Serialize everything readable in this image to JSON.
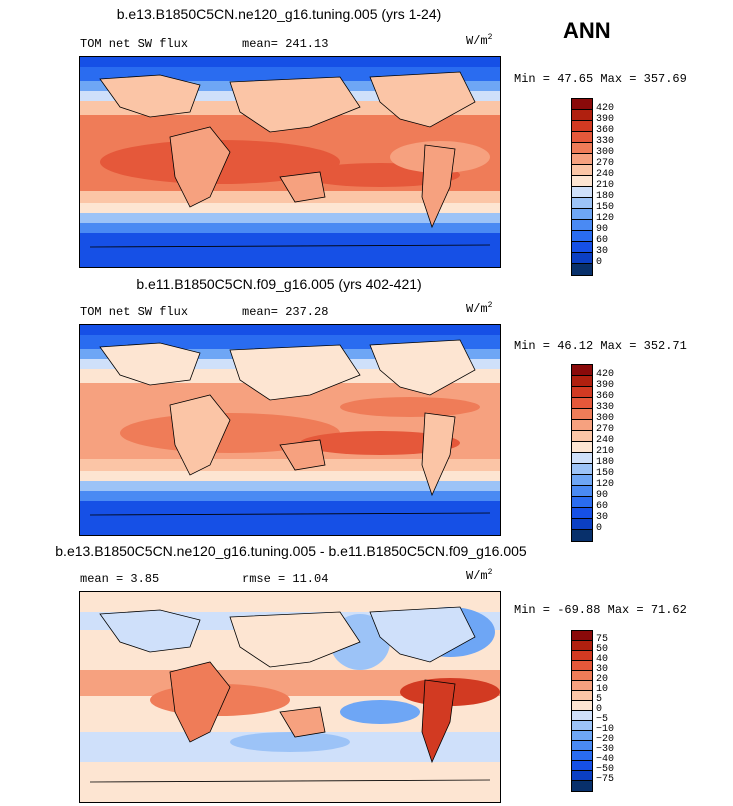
{
  "season": "ANN",
  "colors": [
    "#08306b",
    "#0b3fc4",
    "#1650e6",
    "#2a6cf0",
    "#4a8af3",
    "#6ea6f5",
    "#9cc3f7",
    "#cfe0fa",
    "#fde5d2",
    "#fbc5a6",
    "#f6a17f",
    "#ef7c58",
    "#e5583a",
    "#d23a22",
    "#b0200f",
    "#8a0a0a"
  ],
  "panels": [
    {
      "title": "b.e13.B1850C5CN.ne120_g16.tuning.005 (yrs 1-24)",
      "variable": "TOM net SW flux",
      "stat_text": "mean= 241.13",
      "unit_base": "W/m",
      "unit_sup": "2",
      "minmax": "Min =  47.65 Max = 357.69",
      "levels": [
        "420",
        "390",
        "360",
        "330",
        "300",
        "270",
        "240",
        "210",
        "180",
        "150",
        "120",
        "90",
        "60",
        "30",
        "0"
      ],
      "chart_data": {
        "type": "heatmap",
        "title": "b.e13.B1850C5CN.ne120_g16.tuning.005 (yrs 1-24)",
        "subtitle": "TOM net SW flux",
        "units": "W/m^2",
        "mean": 241.13,
        "min": 47.65,
        "max": 357.69,
        "contour_levels": [
          0,
          30,
          60,
          90,
          120,
          150,
          180,
          210,
          240,
          270,
          300,
          330,
          360,
          390,
          420
        ]
      }
    },
    {
      "title": "b.e11.B1850C5CN.f09_g16.005 (yrs 402-421)",
      "variable": "TOM net SW flux",
      "stat_text": "mean= 237.28",
      "unit_base": "W/m",
      "unit_sup": "2",
      "minmax": "Min =  46.12 Max = 352.71",
      "levels": [
        "420",
        "390",
        "360",
        "330",
        "300",
        "270",
        "240",
        "210",
        "180",
        "150",
        "120",
        "90",
        "60",
        "30",
        "0"
      ],
      "chart_data": {
        "type": "heatmap",
        "title": "b.e11.B1850C5CN.f09_g16.005 (yrs 402-421)",
        "subtitle": "TOM net SW flux",
        "units": "W/m^2",
        "mean": 237.28,
        "min": 46.12,
        "max": 352.71,
        "contour_levels": [
          0,
          30,
          60,
          90,
          120,
          150,
          180,
          210,
          240,
          270,
          300,
          330,
          360,
          390,
          420
        ]
      }
    },
    {
      "title": "b.e13.B1850C5CN.ne120_g16.tuning.005 - b.e11.B1850C5CN.f09_g16.005",
      "stat_text": "mean =   3.85",
      "stat_text2": "rmse =  11.04",
      "unit_base": "W/m",
      "unit_sup": "2",
      "minmax": "Min = -69.88 Max =  71.62",
      "levels": [
        "75",
        "50",
        "40",
        "30",
        "20",
        "10",
        "5",
        "0",
        "−5",
        "−10",
        "−20",
        "−30",
        "−40",
        "−50",
        "−75"
      ],
      "chart_data": {
        "type": "heatmap",
        "title": "b.e13.B1850C5CN.ne120_g16.tuning.005 - b.e11.B1850C5CN.f09_g16.005",
        "units": "W/m^2",
        "mean": 3.85,
        "rmse": 11.04,
        "min": -69.88,
        "max": 71.62,
        "contour_levels": [
          -75,
          -50,
          -40,
          -30,
          -20,
          -10,
          -5,
          0,
          5,
          10,
          20,
          30,
          40,
          50,
          75
        ]
      }
    }
  ]
}
